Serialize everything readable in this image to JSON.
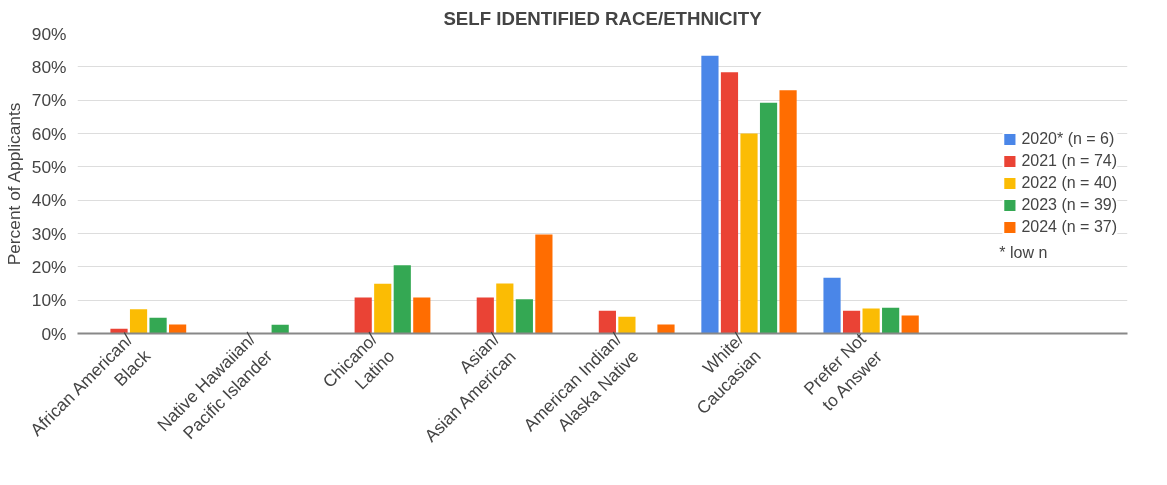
{
  "chart_data": {
    "type": "bar",
    "title": "SELF IDENTIFIED RACE/ETHNICITY",
    "ylabel": "Percent of Applicants",
    "categories": [
      "African American/\nBlack",
      "Native Hawaiian/\nPacific Islander",
      "Chicano/\nLatino",
      "Asian/\nAsian American",
      "American Indian/\nAlaska Native",
      "White/\nCaucasian",
      "Prefer Not\nto Answer"
    ],
    "series": [
      {
        "name": "2020* (n = 6)",
        "color": "#4a86e8",
        "values": [
          0,
          0,
          0,
          0,
          0,
          83.3,
          16.7
        ]
      },
      {
        "name": "2021 (n = 74)",
        "color": "#ea4335",
        "values": [
          1.4,
          0,
          10.8,
          10.8,
          6.8,
          78.4,
          6.8
        ]
      },
      {
        "name": "2022 (n = 40)",
        "color": "#fbbc04",
        "values": [
          7.3,
          0,
          14.9,
          15,
          5,
          60,
          7.5
        ]
      },
      {
        "name": "2023 (n = 39)",
        "color": "#34a853",
        "values": [
          4.7,
          2.6,
          20.5,
          10.3,
          0,
          69.2,
          7.7
        ]
      },
      {
        "name": "2024 (n = 37)",
        "color": "#ff6d01",
        "values": [
          2.7,
          0,
          10.8,
          29.7,
          2.7,
          73,
          5.4
        ]
      }
    ],
    "ylim": [
      0,
      90
    ],
    "yticks": [
      {
        "value": 0,
        "label": "0%"
      },
      {
        "value": 10,
        "label": "10%"
      },
      {
        "value": 20,
        "label": "20%"
      },
      {
        "value": 30,
        "label": "30%"
      },
      {
        "value": 40,
        "label": "40%"
      },
      {
        "value": 50,
        "label": "50%"
      },
      {
        "value": 60,
        "label": "60%"
      },
      {
        "value": 70,
        "label": "70%"
      },
      {
        "value": 80,
        "label": "80%"
      },
      {
        "value": 90,
        "label": "90%"
      }
    ],
    "grid": "y",
    "legend": "right",
    "annotations": [
      "* low n"
    ]
  }
}
